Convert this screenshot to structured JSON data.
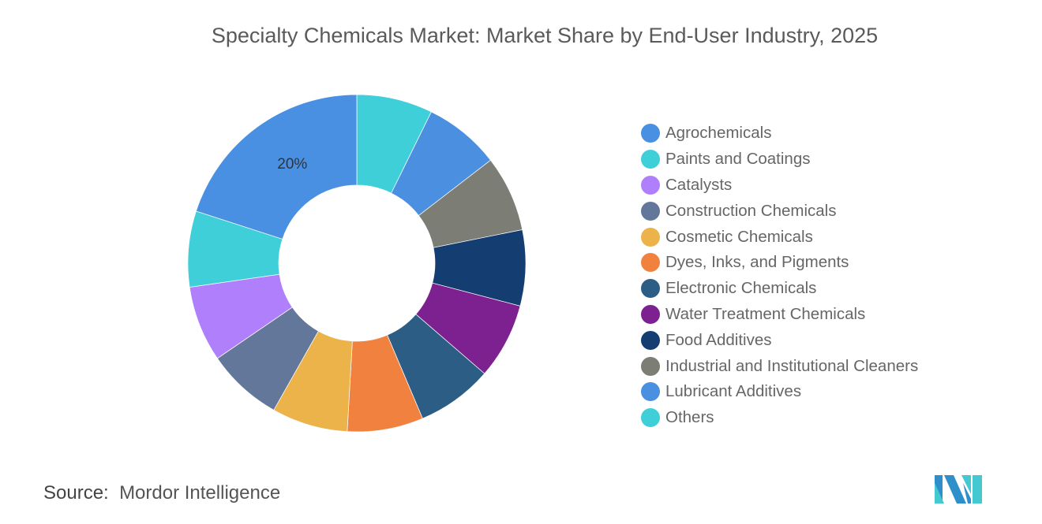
{
  "chart_data": {
    "type": "pie",
    "donut": true,
    "title": "Specialty Chemicals Market: Market Share by End-User Industry, 2025",
    "categories": [
      "Agrochemicals",
      "Paints and Coatings",
      "Catalysts",
      "Construction Chemicals",
      "Cosmetic Chemicals",
      "Dyes, Inks, and Pigments",
      "Electronic Chemicals",
      "Water Treatment Chemicals",
      "Food Additives",
      "Industrial and Institutional Cleaners",
      "Lubricant Additives",
      "Others"
    ],
    "values": [
      20,
      7.27,
      7.27,
      7.27,
      7.27,
      7.27,
      7.27,
      7.27,
      7.27,
      7.27,
      7.27,
      7.27
    ],
    "colors": [
      "#4a90e2",
      "#3ecfd8",
      "#b07ffc",
      "#62779a",
      "#ecb34a",
      "#f0813f",
      "#2c5e85",
      "#7e2190",
      "#143e72",
      "#7c7d74",
      "#4a8fe0",
      "#3ecfd8"
    ],
    "data_labels": {
      "Agrochemicals": "20%"
    },
    "legend_position": "right"
  },
  "source": {
    "label": "Source:",
    "value": "Mordor Intelligence"
  }
}
